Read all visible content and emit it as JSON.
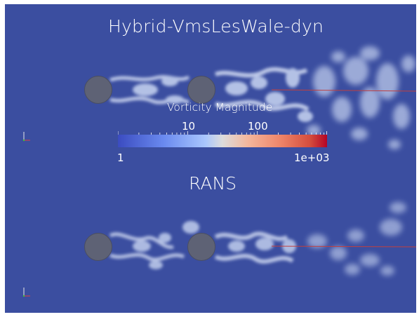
{
  "titles": {
    "top": "Hybrid-VmsLesWale-dyn",
    "bottom": "RANS"
  },
  "colorbar": {
    "title": "Vorticity Magnitude",
    "min_label": "1",
    "max_label": "1e+03",
    "tick_labels": [
      "10",
      "100"
    ],
    "scale": "log",
    "range": [
      1,
      1000
    ],
    "colormap": "cool-to-warm"
  },
  "colors": {
    "background": "#3b4ea0",
    "cylinder": "#5e6275",
    "vortex_light": "#c9d6f2",
    "reference_line": "#c04040"
  },
  "icons": [
    "orientation-axes-icon"
  ]
}
